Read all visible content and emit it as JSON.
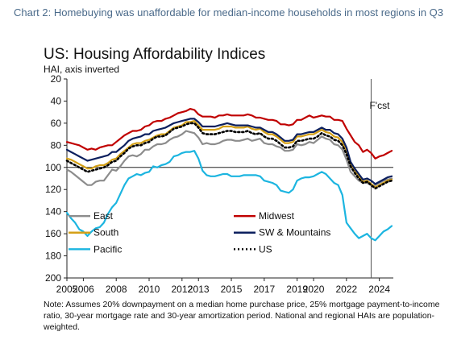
{
  "caption": "Chart 2: Homebuying was unaffordable for median-income households in most regions in Q3",
  "chart_data": {
    "type": "line",
    "title": "US: Housing Affordability Indices",
    "subtitle": "HAI, axis inverted",
    "ylim": [
      20,
      200
    ],
    "y_inverted": true,
    "y_ticks": [
      20,
      40,
      60,
      80,
      100,
      120,
      140,
      160,
      180,
      200
    ],
    "xlim": [
      2005,
      2024.85
    ],
    "x_ticks": [
      2005,
      2006,
      2008,
      2010,
      2012,
      2013,
      2015,
      2017,
      2019,
      2020,
      2022,
      2024
    ],
    "forecast_start": 2023.5,
    "forecast_label": "F'cst",
    "reference_line": 100,
    "grid": false,
    "legend_position": "bottom-center",
    "x": [
      2005,
      2005.25,
      2005.5,
      2005.75,
      2006,
      2006.25,
      2006.5,
      2006.75,
      2007,
      2007.25,
      2007.5,
      2007.75,
      2008,
      2008.25,
      2008.5,
      2008.75,
      2009,
      2009.25,
      2009.5,
      2009.75,
      2010,
      2010.25,
      2010.5,
      2010.75,
      2011,
      2011.25,
      2011.5,
      2011.75,
      2012,
      2012.25,
      2012.5,
      2012.75,
      2013,
      2013.25,
      2013.5,
      2013.75,
      2014,
      2014.25,
      2014.5,
      2014.75,
      2015,
      2015.25,
      2015.5,
      2015.75,
      2016,
      2016.25,
      2016.5,
      2016.75,
      2017,
      2017.25,
      2017.5,
      2017.75,
      2018,
      2018.25,
      2018.5,
      2018.75,
      2019,
      2019.25,
      2019.5,
      2019.75,
      2020,
      2020.25,
      2020.5,
      2020.75,
      2021,
      2021.25,
      2021.5,
      2021.75,
      2022,
      2022.25,
      2022.5,
      2022.75,
      2023,
      2023.25,
      2023.5,
      2023.75,
      2024,
      2024.25,
      2024.5,
      2024.75
    ],
    "series": [
      {
        "name": "East",
        "color": "#8c8c8c",
        "style": "solid",
        "values": [
          102,
          104,
          107,
          110,
          113,
          116,
          116,
          113,
          112,
          112,
          107,
          102,
          103,
          99,
          94,
          90,
          89,
          90,
          88,
          84,
          84,
          81,
          79,
          79,
          78,
          75,
          73,
          72,
          70,
          67,
          68,
          69,
          73,
          79,
          78,
          79,
          79,
          78,
          76,
          75,
          75,
          76,
          76,
          75,
          74,
          76,
          75,
          74,
          78,
          79,
          79,
          81,
          82,
          85,
          85,
          84,
          79,
          80,
          79,
          77,
          78,
          75,
          72,
          74,
          75,
          79,
          80,
          84,
          93,
          104,
          108,
          112,
          114,
          114,
          116,
          116,
          114,
          112,
          111,
          110
        ]
      },
      {
        "name": "Midwest",
        "color": "#c00000",
        "style": "solid",
        "values": [
          77,
          78,
          79,
          80,
          82,
          84,
          83,
          84,
          82,
          81,
          80,
          80,
          77,
          74,
          71,
          69,
          67,
          67,
          66,
          63,
          62,
          59,
          58,
          58,
          56,
          55,
          53,
          51,
          50,
          49,
          47,
          48,
          52,
          54,
          54,
          54,
          55,
          53,
          53,
          52,
          53,
          53,
          53,
          53,
          52,
          53,
          55,
          55,
          56,
          57,
          57,
          58,
          61,
          61,
          62,
          61,
          57,
          57,
          55,
          53,
          55,
          54,
          53,
          54,
          54,
          57,
          57,
          58,
          65,
          71,
          77,
          80,
          86,
          84,
          87,
          92,
          90,
          89,
          87,
          85
        ]
      },
      {
        "name": "South",
        "color": "#d4a017",
        "style": "solid",
        "values": [
          92,
          93,
          95,
          97,
          99,
          101,
          101,
          99,
          98,
          98,
          96,
          93,
          92,
          88,
          85,
          82,
          79,
          78,
          78,
          76,
          75,
          73,
          71,
          70,
          70,
          67,
          64,
          63,
          62,
          59,
          59,
          58,
          62,
          66,
          66,
          66,
          66,
          65,
          63,
          63,
          63,
          64,
          64,
          64,
          63,
          65,
          66,
          65,
          68,
          70,
          70,
          72,
          75,
          78,
          78,
          77,
          72,
          72,
          71,
          70,
          70,
          68,
          66,
          68,
          69,
          72,
          73,
          77,
          85,
          97,
          103,
          108,
          113,
          112,
          115,
          118,
          116,
          114,
          112,
          111
        ]
      },
      {
        "name": "SW & Mountains",
        "color": "#0b1f5e",
        "style": "solid",
        "values": [
          84,
          86,
          88,
          90,
          92,
          94,
          93,
          92,
          91,
          90,
          89,
          86,
          86,
          83,
          80,
          76,
          74,
          73,
          72,
          70,
          70,
          67,
          66,
          65,
          64,
          62,
          60,
          59,
          58,
          57,
          56,
          56,
          59,
          63,
          63,
          63,
          63,
          62,
          61,
          60,
          61,
          62,
          62,
          62,
          62,
          63,
          64,
          64,
          66,
          68,
          68,
          70,
          73,
          76,
          76,
          75,
          70,
          70,
          69,
          68,
          68,
          66,
          64,
          66,
          66,
          69,
          70,
          74,
          82,
          95,
          101,
          106,
          111,
          110,
          112,
          115,
          113,
          111,
          109,
          108
        ]
      },
      {
        "name": "Pacific",
        "color": "#1cb5e0",
        "style": "solid",
        "values": [
          141,
          146,
          150,
          156,
          158,
          162,
          158,
          155,
          154,
          150,
          142,
          136,
          132,
          124,
          116,
          110,
          108,
          106,
          107,
          105,
          104,
          99,
          100,
          98,
          97,
          95,
          90,
          89,
          87,
          86,
          86,
          85,
          92,
          103,
          107,
          108,
          108,
          107,
          106,
          106,
          108,
          108,
          108,
          107,
          107,
          107,
          107,
          108,
          112,
          113,
          114,
          116,
          121,
          122,
          123,
          120,
          112,
          110,
          109,
          109,
          108,
          106,
          104,
          106,
          110,
          114,
          116,
          125,
          150,
          155,
          160,
          164,
          162,
          160,
          164,
          166,
          162,
          158,
          156,
          153
        ]
      },
      {
        "name": "US",
        "color": "#000000",
        "style": "dotted",
        "values": [
          94,
          96,
          98,
          100,
          102,
          104,
          103,
          102,
          101,
          100,
          98,
          95,
          94,
          90,
          87,
          83,
          81,
          80,
          80,
          78,
          77,
          74,
          72,
          72,
          71,
          68,
          65,
          64,
          63,
          61,
          60,
          60,
          64,
          69,
          70,
          70,
          70,
          69,
          68,
          67,
          67,
          68,
          68,
          68,
          67,
          69,
          70,
          69,
          72,
          74,
          74,
          76,
          79,
          82,
          82,
          81,
          76,
          76,
          75,
          74,
          74,
          72,
          69,
          71,
          72,
          75,
          76,
          80,
          88,
          99,
          105,
          110,
          114,
          113,
          116,
          119,
          117,
          115,
          113,
          112
        ]
      }
    ],
    "legend_rows": [
      [
        "East",
        "Midwest"
      ],
      [
        "South",
        "SW & Mountains"
      ],
      [
        "Pacific",
        "US"
      ]
    ]
  },
  "note": "Note: Assumes 20% downpayment on a median home purchase price, 25% mortgage payment-to-income ratio, 30-year mortgage rate and 30-year amortization period. National and regional HAIs are population-weighted."
}
